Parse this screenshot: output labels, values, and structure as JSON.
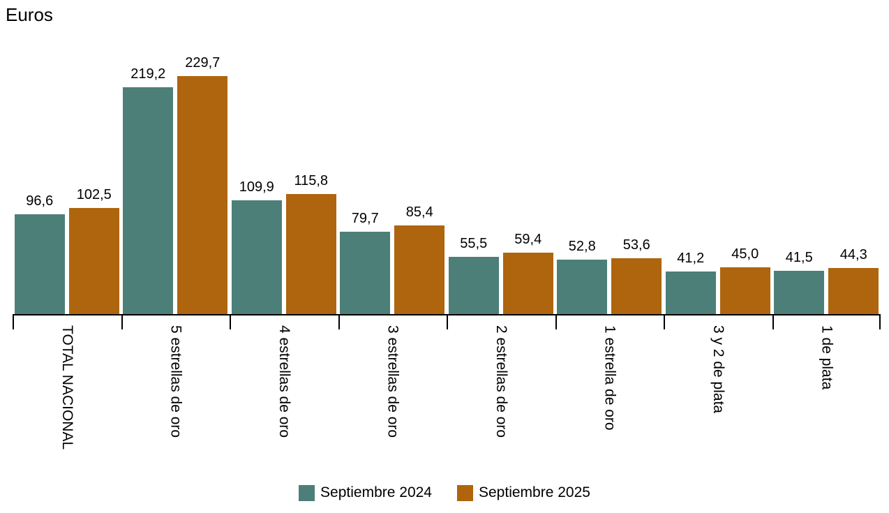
{
  "chart_data": {
    "type": "bar",
    "ylabel": "Euros",
    "xlabel": "",
    "ylim": [
      0,
      245
    ],
    "grid": false,
    "legend_position": "bottom",
    "value_labels": true,
    "decimal_separator": ",",
    "categories": [
      "TOTAL NACIONAL",
      "5 estrellas de oro",
      "4 estrellas de oro",
      "3 estrellas de oro",
      "2 estrellas de oro",
      "1 estrella de oro",
      "3 y 2 de plata",
      "1 de plata"
    ],
    "series": [
      {
        "name": "Septiembre 2024",
        "color": "#4C7F78",
        "values": [
          96.6,
          219.2,
          109.9,
          79.7,
          55.5,
          52.8,
          41.2,
          41.5
        ],
        "labels": [
          "96,6",
          "219,2",
          "109,9",
          "79,7",
          "55,5",
          "52,8",
          "41,2",
          "41,5"
        ]
      },
      {
        "name": "Septiembre 2025",
        "color": "#AE650E",
        "values": [
          102.5,
          229.7,
          115.8,
          85.4,
          59.4,
          53.6,
          45.0,
          44.3
        ],
        "labels": [
          "102,5",
          "229,7",
          "115,8",
          "85,4",
          "59,4",
          "53,6",
          "45,0",
          "44,3"
        ]
      }
    ]
  }
}
